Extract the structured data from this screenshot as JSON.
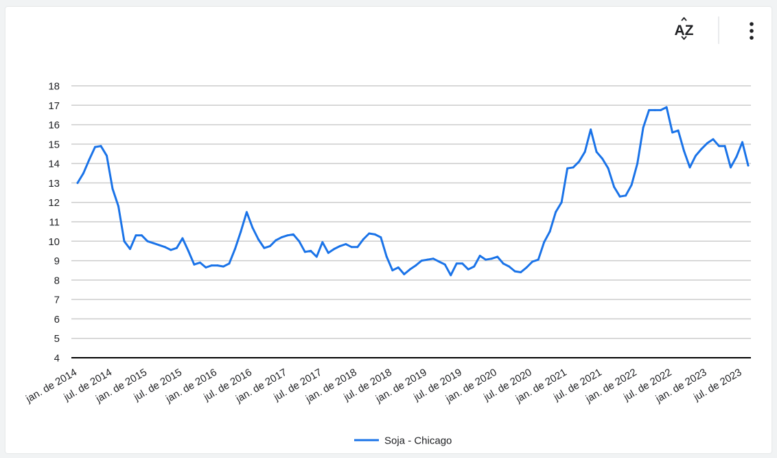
{
  "toolbar": {
    "sort_icon": "sort-az-icon",
    "sort_label": "AZ",
    "menu_icon": "more-vert-icon"
  },
  "colors": {
    "series": "#1a73e8",
    "grid": "#cccccc",
    "axis": "#000000",
    "text": "#202124"
  },
  "chart_data": {
    "type": "line",
    "title": "",
    "xlabel": "",
    "ylabel": "",
    "ylim": [
      4,
      18
    ],
    "yticks": [
      4,
      5,
      6,
      7,
      8,
      9,
      10,
      11,
      12,
      13,
      14,
      15,
      16,
      17,
      18
    ],
    "grid": true,
    "legend": "bottom",
    "xtick_labels": [
      "jan. de 2014",
      "jul. de 2014",
      "jan. de 2015",
      "jul. de 2015",
      "jan. de 2016",
      "jul. de 2016",
      "jan. de 2017",
      "jul. de 2017",
      "jan. de 2018",
      "jul. de 2018",
      "jan. de 2019",
      "jul. de 2019",
      "jan. de 2020",
      "jul. de 2020",
      "jan. de 2021",
      "jul. de 2021",
      "jan. de 2022",
      "jul. de 2022",
      "jan. de 2023",
      "jul. de 2023"
    ],
    "series": [
      {
        "name": "Soja - Chicago",
        "start": "jan. de 2014",
        "values": [
          13.0,
          13.5,
          14.2,
          14.85,
          14.9,
          14.4,
          12.7,
          11.8,
          10.0,
          9.6,
          10.3,
          10.3,
          10.0,
          9.9,
          9.8,
          9.7,
          9.55,
          9.65,
          10.15,
          9.5,
          8.8,
          8.9,
          8.65,
          8.75,
          8.75,
          8.7,
          8.85,
          9.6,
          10.5,
          11.5,
          10.7,
          10.1,
          9.65,
          9.75,
          10.05,
          10.2,
          10.3,
          10.35,
          10.0,
          9.45,
          9.5,
          9.2,
          9.95,
          9.4,
          9.6,
          9.75,
          9.85,
          9.7,
          9.7,
          10.1,
          10.4,
          10.35,
          10.2,
          9.2,
          8.5,
          8.65,
          8.3,
          8.55,
          8.75,
          9.0,
          9.05,
          9.1,
          8.95,
          8.8,
          8.25,
          8.85,
          8.85,
          8.55,
          8.7,
          9.25,
          9.05,
          9.1,
          9.2,
          8.85,
          8.7,
          8.45,
          8.4,
          8.65,
          8.95,
          9.05,
          9.95,
          10.5,
          11.5,
          12.0,
          13.75,
          13.8,
          14.1,
          14.6,
          15.75,
          14.6,
          14.25,
          13.75,
          12.8,
          12.3,
          12.35,
          12.9,
          14.0,
          15.85,
          16.75,
          16.75,
          16.75,
          16.9,
          15.6,
          15.7,
          14.65,
          13.8,
          14.4,
          14.75,
          15.05,
          15.25,
          14.9,
          14.9,
          13.8,
          14.35,
          15.1,
          13.9
        ]
      }
    ]
  }
}
